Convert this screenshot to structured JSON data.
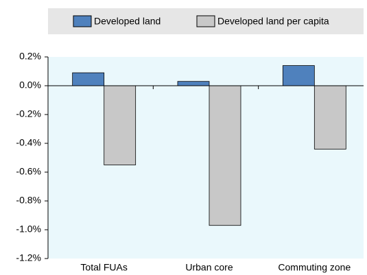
{
  "chart_data": {
    "type": "bar",
    "categories": [
      "Total FUAs",
      "Urban core",
      "Commuting zone"
    ],
    "series": [
      {
        "name": "Developed land",
        "color": "#4f81bd",
        "values": [
          0.09,
          0.03,
          0.14
        ]
      },
      {
        "name": "Developed land per capita",
        "color": "#c8c8c8",
        "values": [
          -0.55,
          -0.97,
          -0.44
        ]
      }
    ],
    "ylim": [
      -1.2,
      0.2
    ],
    "yticks": [
      {
        "value": 0.2,
        "label": "0.2%"
      },
      {
        "value": 0,
        "label": "0.0%"
      },
      {
        "value": -0.2,
        "label": "-0.2%"
      },
      {
        "value": -0.4,
        "label": "-0.4%"
      },
      {
        "value": -0.6,
        "label": "-0.6%"
      },
      {
        "value": -0.8,
        "label": "-0.8%"
      },
      {
        "value": -1,
        "label": "-1.0%"
      },
      {
        "value": -1.2,
        "label": "-1.2%"
      }
    ],
    "plot_background": "#eaf8fc",
    "legend_background": "#e6e6e6"
  }
}
